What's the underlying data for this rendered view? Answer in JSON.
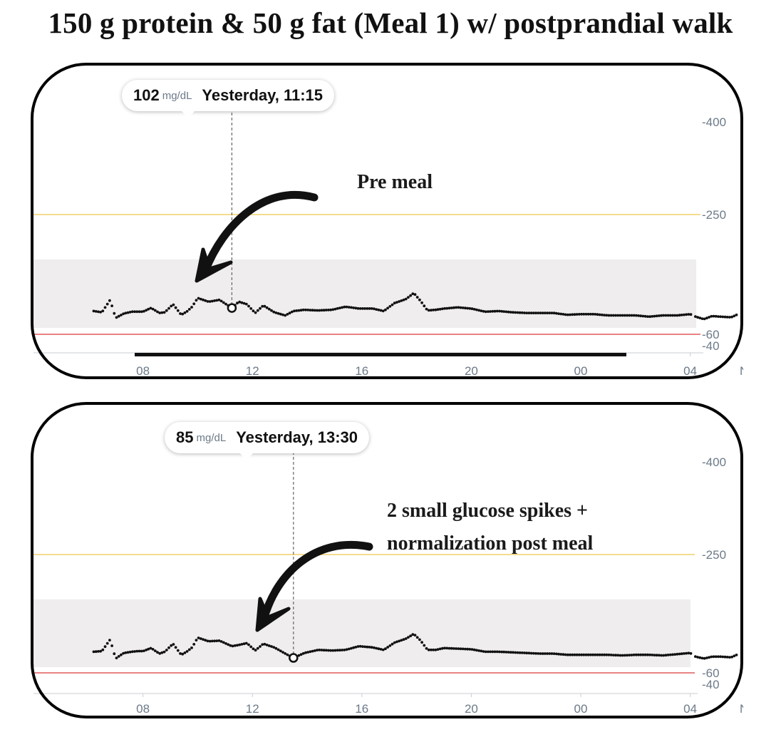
{
  "title": "150 g protein & 50 g fat (Meal 1) w/ postprandial walk",
  "colors": {
    "dots": "#111111",
    "high_line": "#f2cf6a",
    "low_line": "#e05a5a",
    "target_band": "#efedee",
    "axis_text": "#6c7a89",
    "frame": "#000000"
  },
  "chart_data": [
    {
      "type": "scatter",
      "title": "",
      "unit": "mg/dL",
      "x_ticks": [
        "08",
        "12",
        "16",
        "20",
        "00",
        "04",
        "Nov"
      ],
      "y_ticks": [
        "400",
        "250",
        "60",
        "40"
      ],
      "thresholds": {
        "high": 250,
        "low": 60
      },
      "target_range": [
        70,
        180
      ],
      "tooltip": {
        "value": "102",
        "unit": "mg/dL",
        "time": "Yesterday, 11:15"
      },
      "annotation": [
        "Pre meal"
      ],
      "highlight": {
        "x": 11.25,
        "y": 102
      },
      "series": [
        {
          "x": [
            6.2,
            6.5,
            6.8,
            7.0,
            7.3,
            7.6,
            7.8,
            8.0,
            8.3,
            8.6,
            8.8,
            9.1,
            9.4,
            9.6,
            9.8,
            10.0,
            10.4,
            10.8,
            11.25,
            11.5,
            11.8,
            12.1,
            12.4,
            12.8,
            13.2,
            13.5,
            13.9,
            14.4,
            14.9,
            15.4,
            15.9,
            16.4,
            16.8,
            17.2,
            17.6,
            17.9,
            18.15,
            18.4,
            18.7,
            19.0,
            19.5,
            20.0,
            20.5,
            21.0,
            21.5,
            22.0,
            22.5,
            23.0,
            23.5,
            24.0,
            24.5,
            25.0,
            25.5,
            26.0,
            26.5,
            27.0,
            27.5,
            28.0,
            28.2,
            28.5,
            28.8,
            29.1,
            29.5,
            29.7
          ],
          "y": [
            97,
            95,
            115,
            86,
            93,
            96,
            96,
            96,
            102,
            94,
            95,
            108,
            91,
            96,
            104,
            118,
            112,
            115,
            102,
            112,
            108,
            94,
            106,
            95,
            90,
            97,
            99,
            98,
            99,
            104,
            101,
            101,
            97,
            110,
            116,
            126,
            113,
            98,
            99,
            101,
            103,
            101,
            96,
            97,
            95,
            94,
            94,
            94,
            91,
            92,
            92,
            90,
            90,
            90,
            88,
            90,
            90,
            92,
            88,
            84,
            89,
            88,
            87,
            91
          ]
        }
      ]
    },
    {
      "type": "scatter",
      "title": "",
      "unit": "mg/dL",
      "x_ticks": [
        "08",
        "12",
        "16",
        "20",
        "00",
        "04",
        "Nov"
      ],
      "y_ticks": [
        "400",
        "250",
        "60",
        "40"
      ],
      "thresholds": {
        "high": 250,
        "low": 60
      },
      "target_range": [
        70,
        180
      ],
      "tooltip": {
        "value": "85",
        "unit": "mg/dL",
        "time": "Yesterday, 13:30"
      },
      "annotation": [
        "2 small glucose spikes +",
        "normalization post meal"
      ],
      "highlight": {
        "x": 13.5,
        "y": 85
      },
      "series": [
        {
          "x": [
            6.2,
            6.5,
            6.8,
            7.0,
            7.3,
            7.6,
            7.8,
            8.0,
            8.3,
            8.6,
            8.8,
            9.1,
            9.4,
            9.6,
            9.8,
            10.0,
            10.4,
            10.8,
            11.25,
            11.5,
            11.8,
            12.1,
            12.4,
            12.8,
            13.2,
            13.5,
            13.9,
            14.4,
            14.9,
            15.4,
            15.9,
            16.4,
            16.8,
            17.2,
            17.6,
            17.9,
            18.15,
            18.4,
            18.7,
            19.0,
            19.5,
            20.0,
            20.5,
            21.0,
            21.5,
            22.0,
            22.5,
            23.0,
            23.5,
            24.0,
            24.5,
            25.0,
            25.5,
            26.0,
            26.5,
            27.0,
            27.5,
            28.0,
            28.2,
            28.5,
            28.8,
            29.1,
            29.5,
            29.7
          ],
          "y": [
            95,
            96,
            115,
            84,
            93,
            95,
            96,
            96,
            101,
            92,
            95,
            108,
            90,
            95,
            102,
            118,
            112,
            113,
            104,
            106,
            109,
            97,
            108,
            102,
            92,
            85,
            93,
            98,
            97,
            98,
            104,
            102,
            98,
            110,
            116,
            124,
            113,
            98,
            98,
            101,
            100,
            99,
            95,
            95,
            94,
            93,
            92,
            92,
            90,
            90,
            90,
            90,
            89,
            90,
            90,
            89,
            91,
            93,
            87,
            84,
            87,
            87,
            86,
            90
          ]
        }
      ]
    }
  ]
}
